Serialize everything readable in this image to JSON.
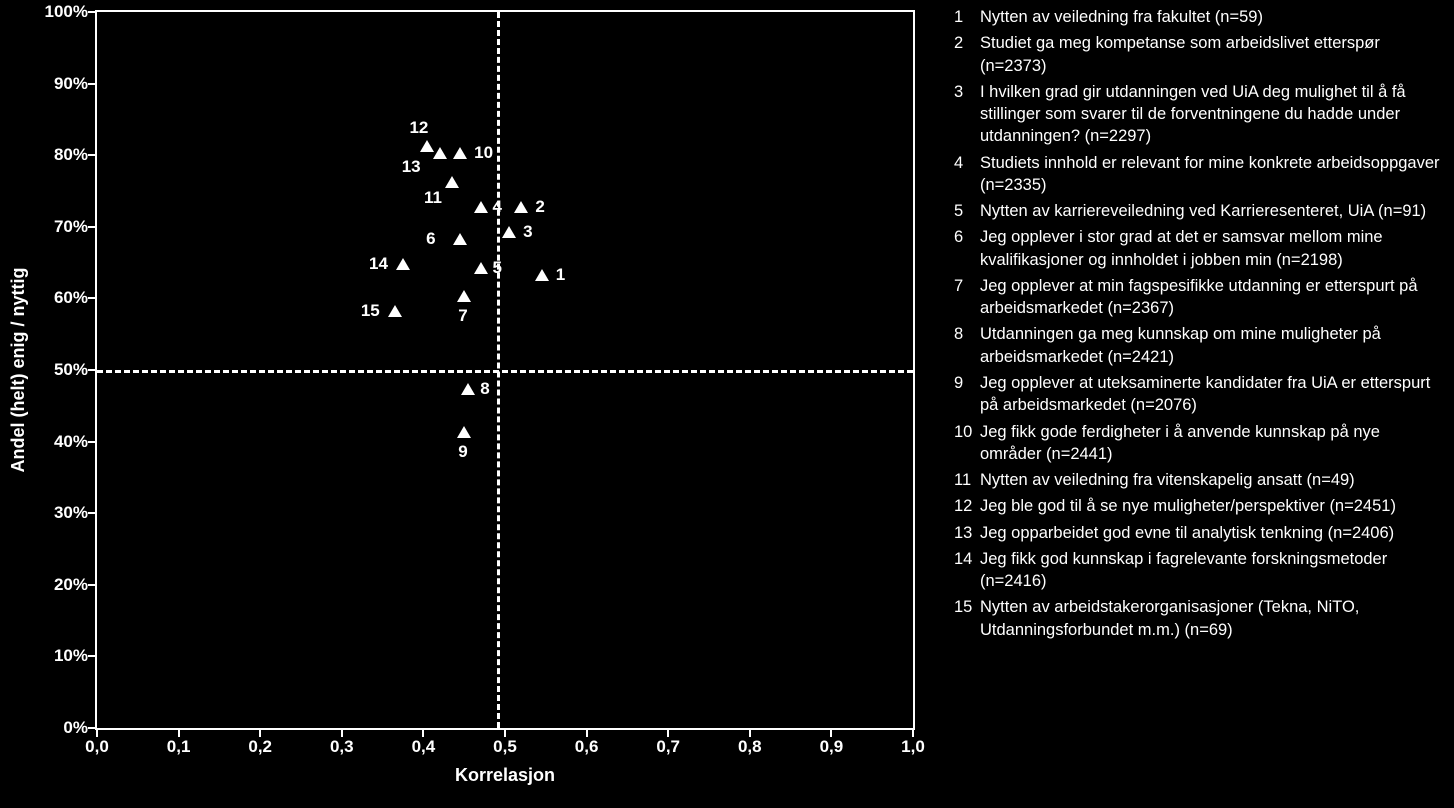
{
  "chart": {
    "type": "scatter",
    "background_color": "#000000",
    "axis_color": "#ffffff",
    "text_color": "#ffffff",
    "marker_color": "#ffffff",
    "marker_shape": "triangle",
    "font_family": "Verdana",
    "x_axis": {
      "title": "Korrelasjon",
      "min": 0.0,
      "max": 1.0,
      "ticks": [
        {
          "v": 0.0,
          "label": "0,0"
        },
        {
          "v": 0.1,
          "label": "0,1"
        },
        {
          "v": 0.2,
          "label": "0,2"
        },
        {
          "v": 0.3,
          "label": "0,3"
        },
        {
          "v": 0.4,
          "label": "0,4"
        },
        {
          "v": 0.5,
          "label": "0,5"
        },
        {
          "v": 0.6,
          "label": "0,6"
        },
        {
          "v": 0.7,
          "label": "0,7"
        },
        {
          "v": 0.8,
          "label": "0,8"
        },
        {
          "v": 0.9,
          "label": "0,9"
        },
        {
          "v": 1.0,
          "label": "1,0"
        }
      ],
      "ref_line": 0.49
    },
    "y_axis": {
      "title": "Andel (helt) enig / nyttig",
      "min": 0,
      "max": 100,
      "ticks": [
        {
          "v": 0,
          "label": "0%"
        },
        {
          "v": 10,
          "label": "10%"
        },
        {
          "v": 20,
          "label": "20%"
        },
        {
          "v": 30,
          "label": "30%"
        },
        {
          "v": 40,
          "label": "40%"
        },
        {
          "v": 50,
          "label": "50%"
        },
        {
          "v": 60,
          "label": "60%"
        },
        {
          "v": 70,
          "label": "70%"
        },
        {
          "v": 80,
          "label": "80%"
        },
        {
          "v": 90,
          "label": "90%"
        },
        {
          "v": 100,
          "label": "100%"
        }
      ],
      "ref_line": 50
    },
    "points": [
      {
        "id": "1",
        "x": 0.545,
        "y": 63,
        "label_pos": "right"
      },
      {
        "id": "2",
        "x": 0.52,
        "y": 72.5,
        "label_pos": "right"
      },
      {
        "id": "3",
        "x": 0.505,
        "y": 69,
        "label_pos": "right"
      },
      {
        "id": "4",
        "x": 0.47,
        "y": 72.5,
        "label_pos": "right-close"
      },
      {
        "id": "5",
        "x": 0.47,
        "y": 64,
        "label_pos": "right-close"
      },
      {
        "id": "6",
        "x": 0.445,
        "y": 68,
        "label_pos": "left"
      },
      {
        "id": "7",
        "x": 0.45,
        "y": 60,
        "label_pos": "below"
      },
      {
        "id": "8",
        "x": 0.455,
        "y": 47,
        "label_pos": "right-close"
      },
      {
        "id": "9",
        "x": 0.45,
        "y": 41,
        "label_pos": "below"
      },
      {
        "id": "10",
        "x": 0.445,
        "y": 80,
        "label_pos": "right"
      },
      {
        "id": "11",
        "x": 0.435,
        "y": 76,
        "label_pos": "left-below"
      },
      {
        "id": "12",
        "x": 0.405,
        "y": 81,
        "label_pos": "above-left"
      },
      {
        "id": "13",
        "x": 0.42,
        "y": 80,
        "label_pos": "left-below2"
      },
      {
        "id": "14",
        "x": 0.375,
        "y": 64.5,
        "label_pos": "left"
      },
      {
        "id": "15",
        "x": 0.365,
        "y": 58,
        "label_pos": "left"
      }
    ]
  },
  "legend": [
    {
      "n": "1",
      "text": "Nytten av veiledning fra fakultet (n=59)"
    },
    {
      "n": "2",
      "text": "Studiet ga meg kompetanse som arbeidslivet etterspør (n=2373)"
    },
    {
      "n": "3",
      "text": "I hvilken grad gir utdanningen ved UiA deg mulighet til å få stillinger som svarer til de forventningene du hadde under utdanningen? (n=2297)"
    },
    {
      "n": "4",
      "text": "Studiets innhold er relevant for mine konkrete arbeidsoppgaver (n=2335)"
    },
    {
      "n": "5",
      "text": "Nytten av karriereveiledning ved Karrieresenteret, UiA (n=91)"
    },
    {
      "n": "6",
      "text": "Jeg opplever i stor grad at det er samsvar mellom mine kvalifikasjoner og innholdet i jobben min (n=2198)"
    },
    {
      "n": "7",
      "text": "Jeg opplever at min fagspesifikke utdanning er etterspurt på arbeidsmarkedet (n=2367)"
    },
    {
      "n": "8",
      "text": "Utdanningen ga meg kunnskap om mine muligheter på arbeidsmarkedet (n=2421)"
    },
    {
      "n": "9",
      "text": "Jeg opplever at uteksaminerte kandidater fra UiA er etterspurt på arbeidsmarkedet (n=2076)"
    },
    {
      "n": "10",
      "text": "Jeg fikk gode ferdigheter i å anvende kunnskap på nye områder (n=2441)"
    },
    {
      "n": "11",
      "text": "Nytten av veiledning fra vitenskapelig ansatt (n=49)"
    },
    {
      "n": "12",
      "text": "Jeg ble god til å se nye muligheter/perspektiver (n=2451)"
    },
    {
      "n": "13",
      "text": "Jeg opparbeidet god evne til analytisk tenkning (n=2406)"
    },
    {
      "n": "14",
      "text": "Jeg fikk god kunnskap i fagrelevante forskningsmetoder (n=2416)"
    },
    {
      "n": "15",
      "text": "Nytten av arbeidstakerorganisasjoner (Tekna, NiTO, Utdanningsforbundet m.m.) (n=69)"
    }
  ]
}
